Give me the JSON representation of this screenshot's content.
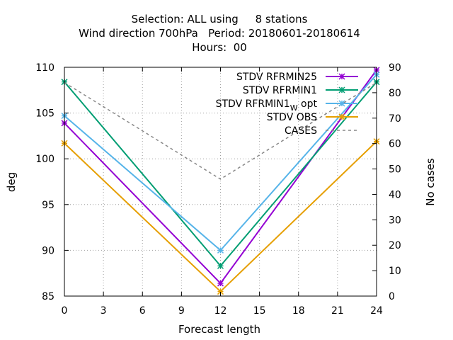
{
  "chart_data": {
    "type": "line",
    "title": [
      "Selection: ALL using     8 stations",
      "Wind direction 700hPa   Period: 20180601-20180614",
      "Hours:  00"
    ],
    "xlabel": "Forecast length",
    "ylabel": "deg",
    "y2label": "No cases",
    "xlim": [
      0,
      24
    ],
    "ylim": [
      85,
      110
    ],
    "y2lim": [
      0,
      90
    ],
    "x_ticks": [
      "0",
      "3",
      "6",
      "9",
      "12",
      "15",
      "18",
      "21",
      "24"
    ],
    "y_ticks": [
      "85",
      "90",
      "95",
      "100",
      "105",
      "110"
    ],
    "y2_ticks": [
      "0",
      "10",
      "20",
      "30",
      "40",
      "50",
      "60",
      "70",
      "80",
      "90"
    ],
    "grid": true,
    "legend_position": "top-right",
    "x": [
      0,
      12,
      24
    ],
    "series": [
      {
        "name": "STDV RFRMIN25",
        "values": [
          103.9,
          86.4,
          109.7
        ],
        "color": "#9400d3",
        "marker": "x-star",
        "axis": "y1"
      },
      {
        "name": "STDV RFRMIN1",
        "values": [
          108.4,
          88.3,
          108.4
        ],
        "color": "#009e73",
        "marker": "x-star",
        "axis": "y1"
      },
      {
        "name": "STDV RFRMIN1",
        "name_sub": "W",
        "name_suffix": " opt",
        "values": [
          104.7,
          90.0,
          109.2
        ],
        "color": "#56b4e9",
        "marker": "x-star",
        "axis": "y1"
      },
      {
        "name": "STDV OBS",
        "values": [
          101.7,
          85.5,
          101.9
        ],
        "color": "#e69f00",
        "marker": "x-star",
        "axis": "y1"
      },
      {
        "name": "CASES",
        "values": [
          84,
          46,
          84
        ],
        "color": "#888888",
        "dashed": true,
        "axis": "y2"
      }
    ]
  }
}
